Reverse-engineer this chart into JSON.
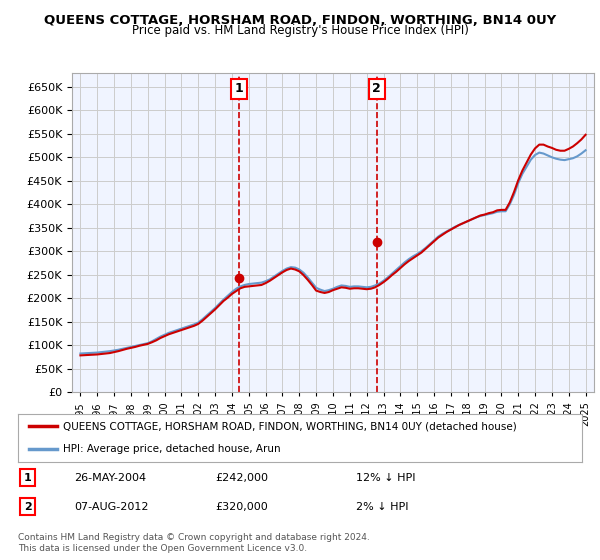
{
  "title": "QUEENS COTTAGE, HORSHAM ROAD, FINDON, WORTHING, BN14 0UY",
  "subtitle": "Price paid vs. HM Land Registry's House Price Index (HPI)",
  "legend_line1": "QUEENS COTTAGE, HORSHAM ROAD, FINDON, WORTHING, BN14 0UY (detached house)",
  "legend_line2": "HPI: Average price, detached house, Arun",
  "footnote": "Contains HM Land Registry data © Crown copyright and database right 2024.\nThis data is licensed under the Open Government Licence v3.0.",
  "sale1_label": "1",
  "sale1_date": "26-MAY-2004",
  "sale1_price": "£242,000",
  "sale1_hpi": "12% ↓ HPI",
  "sale1_x": 2004.4,
  "sale1_y": 242000,
  "sale2_label": "2",
  "sale2_date": "07-AUG-2012",
  "sale2_price": "£320,000",
  "sale2_hpi": "2% ↓ HPI",
  "sale2_x": 2012.6,
  "sale2_y": 320000,
  "red_line_color": "#cc0000",
  "blue_line_color": "#6699cc",
  "background_color": "#ffffff",
  "plot_bg_color": "#f0f4ff",
  "grid_color": "#cccccc",
  "ylim": [
    0,
    680000
  ],
  "yticks": [
    0,
    50000,
    100000,
    150000,
    200000,
    250000,
    300000,
    350000,
    400000,
    450000,
    500000,
    550000,
    600000,
    650000
  ],
  "xlim": [
    1994.5,
    2025.5
  ],
  "xticks": [
    1995,
    1996,
    1997,
    1998,
    1999,
    2000,
    2001,
    2002,
    2003,
    2004,
    2005,
    2006,
    2007,
    2008,
    2009,
    2010,
    2011,
    2012,
    2013,
    2014,
    2015,
    2016,
    2017,
    2018,
    2019,
    2020,
    2021,
    2022,
    2023,
    2024,
    2025
  ],
  "hpi_x": [
    1995.0,
    1995.25,
    1995.5,
    1995.75,
    1996.0,
    1996.25,
    1996.5,
    1996.75,
    1997.0,
    1997.25,
    1997.5,
    1997.75,
    1998.0,
    1998.25,
    1998.5,
    1998.75,
    1999.0,
    1999.25,
    1999.5,
    1999.75,
    2000.0,
    2000.25,
    2000.5,
    2000.75,
    2001.0,
    2001.25,
    2001.5,
    2001.75,
    2002.0,
    2002.25,
    2002.5,
    2002.75,
    2003.0,
    2003.25,
    2003.5,
    2003.75,
    2004.0,
    2004.25,
    2004.5,
    2004.75,
    2005.0,
    2005.25,
    2005.5,
    2005.75,
    2006.0,
    2006.25,
    2006.5,
    2006.75,
    2007.0,
    2007.25,
    2007.5,
    2007.75,
    2008.0,
    2008.25,
    2008.5,
    2008.75,
    2009.0,
    2009.25,
    2009.5,
    2009.75,
    2010.0,
    2010.25,
    2010.5,
    2010.75,
    2011.0,
    2011.25,
    2011.5,
    2011.75,
    2012.0,
    2012.25,
    2012.5,
    2012.75,
    2013.0,
    2013.25,
    2013.5,
    2013.75,
    2014.0,
    2014.25,
    2014.5,
    2014.75,
    2015.0,
    2015.25,
    2015.5,
    2015.75,
    2016.0,
    2016.25,
    2016.5,
    2016.75,
    2017.0,
    2017.25,
    2017.5,
    2017.75,
    2018.0,
    2018.25,
    2018.5,
    2018.75,
    2019.0,
    2019.25,
    2019.5,
    2019.75,
    2020.0,
    2020.25,
    2020.5,
    2020.75,
    2021.0,
    2021.25,
    2021.5,
    2021.75,
    2022.0,
    2022.25,
    2022.5,
    2022.75,
    2023.0,
    2023.25,
    2023.5,
    2023.75,
    2024.0,
    2024.25,
    2024.5,
    2024.75,
    2025.0
  ],
  "hpi_y": [
    82000,
    82500,
    83000,
    83500,
    84000,
    85000,
    86000,
    87000,
    88500,
    90000,
    92000,
    94000,
    96000,
    98000,
    100000,
    102000,
    104000,
    108000,
    113000,
    118000,
    122000,
    126000,
    129000,
    132000,
    135000,
    138000,
    141000,
    144000,
    148000,
    155000,
    163000,
    171000,
    179000,
    188000,
    197000,
    205000,
    213000,
    220000,
    225000,
    228000,
    230000,
    231000,
    232000,
    233000,
    236000,
    240000,
    246000,
    252000,
    258000,
    263000,
    266000,
    265000,
    261000,
    254000,
    244000,
    233000,
    222000,
    218000,
    215000,
    217000,
    220000,
    224000,
    227000,
    226000,
    224000,
    225000,
    225000,
    224000,
    223000,
    224000,
    227000,
    231000,
    237000,
    244000,
    252000,
    260000,
    268000,
    276000,
    283000,
    289000,
    294000,
    300000,
    307000,
    315000,
    323000,
    331000,
    337000,
    342000,
    347000,
    352000,
    356000,
    360000,
    364000,
    368000,
    372000,
    375000,
    377000,
    379000,
    381000,
    384000,
    385000,
    385000,
    400000,
    420000,
    445000,
    465000,
    480000,
    495000,
    505000,
    510000,
    508000,
    504000,
    500000,
    497000,
    495000,
    494000,
    496000,
    498000,
    502000,
    508000,
    515000
  ],
  "price_x": [
    1995.0,
    1995.25,
    1995.5,
    1995.75,
    1996.0,
    1996.25,
    1996.5,
    1996.75,
    1997.0,
    1997.25,
    1997.5,
    1997.75,
    1998.0,
    1998.25,
    1998.5,
    1998.75,
    1999.0,
    1999.25,
    1999.5,
    1999.75,
    2000.0,
    2000.25,
    2000.5,
    2000.75,
    2001.0,
    2001.25,
    2001.5,
    2001.75,
    2002.0,
    2002.25,
    2002.5,
    2002.75,
    2003.0,
    2003.25,
    2003.5,
    2003.75,
    2004.0,
    2004.25,
    2004.5,
    2004.75,
    2005.0,
    2005.25,
    2005.5,
    2005.75,
    2006.0,
    2006.25,
    2006.5,
    2006.75,
    2007.0,
    2007.25,
    2007.5,
    2007.75,
    2008.0,
    2008.25,
    2008.5,
    2008.75,
    2009.0,
    2009.25,
    2009.5,
    2009.75,
    2010.0,
    2010.25,
    2010.5,
    2010.75,
    2011.0,
    2011.25,
    2011.5,
    2011.75,
    2012.0,
    2012.25,
    2012.5,
    2012.75,
    2013.0,
    2013.25,
    2013.5,
    2013.75,
    2014.0,
    2014.25,
    2014.5,
    2014.75,
    2015.0,
    2015.25,
    2015.5,
    2015.75,
    2016.0,
    2016.25,
    2016.5,
    2016.75,
    2017.0,
    2017.25,
    2017.5,
    2017.75,
    2018.0,
    2018.25,
    2018.5,
    2018.75,
    2019.0,
    2019.25,
    2019.5,
    2019.75,
    2020.0,
    2020.25,
    2020.5,
    2020.75,
    2021.0,
    2021.25,
    2021.5,
    2021.75,
    2022.0,
    2022.25,
    2022.5,
    2022.75,
    2023.0,
    2023.25,
    2023.5,
    2023.75,
    2024.0,
    2024.25,
    2024.5,
    2024.75,
    2025.0
  ],
  "price_y": [
    78000,
    78500,
    79000,
    79500,
    80000,
    81000,
    82000,
    83000,
    85000,
    87000,
    89500,
    92000,
    94000,
    96000,
    98500,
    100500,
    102500,
    106000,
    110000,
    115000,
    119000,
    123000,
    126000,
    129000,
    132000,
    135000,
    138000,
    141000,
    145000,
    152000,
    160000,
    168000,
    176000,
    185000,
    194000,
    201000,
    209000,
    215000,
    221000,
    224000,
    225000,
    226000,
    227000,
    228000,
    232000,
    237000,
    243000,
    249000,
    255000,
    260000,
    263000,
    261000,
    257000,
    249000,
    239000,
    228000,
    216000,
    213000,
    211000,
    213000,
    217000,
    220000,
    223000,
    222000,
    220000,
    221000,
    221000,
    220000,
    219000,
    220000,
    223000,
    228000,
    234000,
    241000,
    249000,
    256000,
    264000,
    272000,
    279000,
    285000,
    291000,
    297000,
    305000,
    313000,
    321000,
    329000,
    335000,
    341000,
    346000,
    351000,
    356000,
    360000,
    364000,
    368000,
    372000,
    376000,
    378000,
    381000,
    383000,
    387000,
    388000,
    388000,
    404000,
    426000,
    451000,
    472000,
    489000,
    506000,
    519000,
    527000,
    527000,
    523000,
    520000,
    516000,
    514000,
    514000,
    518000,
    523000,
    530000,
    538000,
    548000
  ]
}
